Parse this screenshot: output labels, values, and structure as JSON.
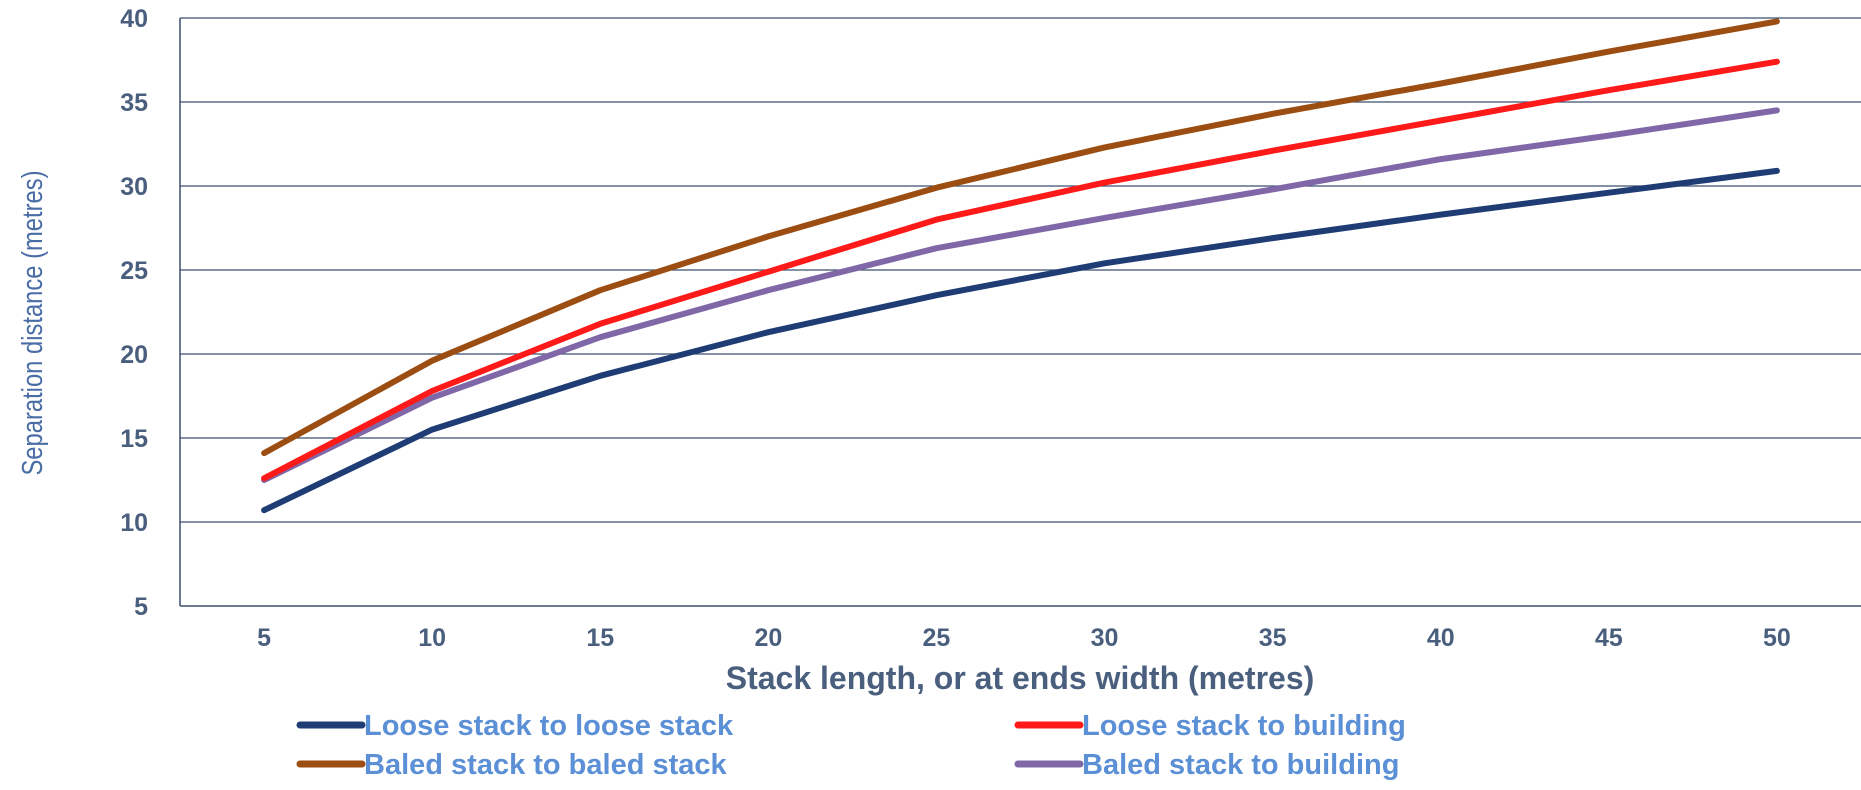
{
  "chart_data": {
    "type": "line",
    "title": "",
    "xlabel": "Stack length, or at ends width (metres)",
    "ylabel": "Separation distance (metres)",
    "x": [
      5,
      10,
      15,
      20,
      25,
      30,
      35,
      40,
      45,
      50
    ],
    "x_ticks": [
      "5",
      "10",
      "15",
      "20",
      "25",
      "30",
      "35",
      "40",
      "45",
      "50"
    ],
    "y_ticks": [
      "5",
      "10",
      "15",
      "20",
      "25",
      "30",
      "35",
      "40"
    ],
    "xlim": [
      2.5,
      52.5
    ],
    "ylim": [
      5,
      40
    ],
    "grid": "horizontal",
    "legend_position": "bottom",
    "series": [
      {
        "name": "Loose stack to loose stack",
        "color": "#1f3d74",
        "values": [
          10.7,
          15.5,
          18.7,
          21.3,
          23.5,
          25.4,
          26.9,
          28.3,
          29.6,
          30.9
        ]
      },
      {
        "name": "Loose stack to building",
        "color": "#ff1a1a",
        "values": [
          12.6,
          17.8,
          21.8,
          24.9,
          28.0,
          30.2,
          32.1,
          33.9,
          35.7,
          37.4
        ]
      },
      {
        "name": "Baled stack to baled stack",
        "color": "#9c4e12",
        "values": [
          14.1,
          19.6,
          23.8,
          27.0,
          29.9,
          32.3,
          34.3,
          36.1,
          38.0,
          39.8
        ]
      },
      {
        "name": "Baled stack to building",
        "color": "#8068a8",
        "values": [
          12.5,
          17.4,
          21.0,
          23.8,
          26.3,
          28.1,
          29.8,
          31.6,
          33.0,
          34.5
        ]
      }
    ]
  }
}
